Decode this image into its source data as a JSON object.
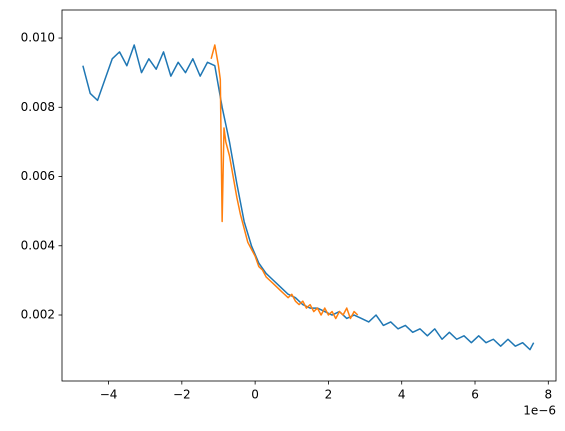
{
  "chart_data": {
    "type": "line",
    "offset_text": "1e−6",
    "xlim": [
      -5.27,
      8.21
    ],
    "xticks": [
      {
        "value": -4,
        "label": "−4"
      },
      {
        "value": -2,
        "label": "−2"
      },
      0,
      2,
      4,
      6,
      8
    ],
    "ylim": [
      9.4e-05,
      0.01081
    ],
    "yticks": [
      0.002,
      0.004,
      0.006,
      0.008,
      {
        "value": 0.01,
        "label": "0.010"
      }
    ],
    "grid": false,
    "series": [
      {
        "color": "#1f77b4",
        "x": [
          -4.7,
          -4.5,
          -4.3,
          -4.1,
          -3.9,
          -3.7,
          -3.5,
          -3.3,
          -3.1,
          -2.9,
          -2.7,
          -2.5,
          -2.3,
          -2.1,
          -1.9,
          -1.7,
          -1.5,
          -1.3,
          -1.1,
          -0.9,
          -0.7,
          -0.5,
          -0.3,
          -0.1,
          0.1,
          0.3,
          0.5,
          0.7,
          0.9,
          1.1,
          1.3,
          1.5,
          1.7,
          1.9,
          2.1,
          2.3,
          2.5,
          2.7,
          2.9,
          3.1,
          3.3,
          3.5,
          3.7,
          3.9,
          4.1,
          4.3,
          4.5,
          4.7,
          4.9,
          5.1,
          5.3,
          5.5,
          5.7,
          5.9,
          6.1,
          6.3,
          6.5,
          6.7,
          6.9,
          7.1,
          7.3,
          7.5,
          7.6
        ],
        "values": [
          0.0092,
          0.0084,
          0.0082,
          0.0088,
          0.0094,
          0.0096,
          0.0092,
          0.0098,
          0.009,
          0.0094,
          0.0091,
          0.0096,
          0.0089,
          0.0093,
          0.009,
          0.0094,
          0.0089,
          0.0093,
          0.0092,
          0.008,
          0.007,
          0.0058,
          0.0047,
          0.004,
          0.0035,
          0.0032,
          0.003,
          0.0028,
          0.0026,
          0.0025,
          0.0023,
          0.0022,
          0.0022,
          0.0021,
          0.002,
          0.0021,
          0.0019,
          0.002,
          0.0019,
          0.0018,
          0.002,
          0.0017,
          0.0018,
          0.0016,
          0.0017,
          0.0015,
          0.0016,
          0.0014,
          0.0016,
          0.0013,
          0.0015,
          0.0013,
          0.0014,
          0.0012,
          0.0014,
          0.0012,
          0.0013,
          0.0011,
          0.0013,
          0.0011,
          0.0012,
          0.001,
          0.0012
        ]
      },
      {
        "color": "#ff7f0e",
        "x": [
          -1.2,
          -1.1,
          -1.0,
          -0.95,
          -0.9,
          -0.85,
          -0.8,
          -0.7,
          -0.6,
          -0.5,
          -0.4,
          -0.3,
          -0.2,
          -0.1,
          0,
          0.1,
          0.2,
          0.3,
          0.4,
          0.5,
          0.6,
          0.7,
          0.8,
          0.9,
          1.0,
          1.1,
          1.2,
          1.3,
          1.4,
          1.5,
          1.6,
          1.7,
          1.8,
          1.9,
          2.0,
          2.1,
          2.2,
          2.3,
          2.4,
          2.5,
          2.6,
          2.7,
          2.8
        ],
        "values": [
          0.0094,
          0.0098,
          0.0092,
          0.0088,
          0.0047,
          0.0074,
          0.007,
          0.0066,
          0.006,
          0.0054,
          0.0049,
          0.0045,
          0.0041,
          0.0039,
          0.0037,
          0.0034,
          0.0033,
          0.0031,
          0.003,
          0.0029,
          0.0028,
          0.0027,
          0.0026,
          0.0025,
          0.0026,
          0.0024,
          0.0023,
          0.0024,
          0.0022,
          0.0023,
          0.0021,
          0.0022,
          0.002,
          0.0022,
          0.002,
          0.0021,
          0.0019,
          0.0021,
          0.002,
          0.0022,
          0.0019,
          0.0021,
          0.002
        ]
      }
    ]
  }
}
